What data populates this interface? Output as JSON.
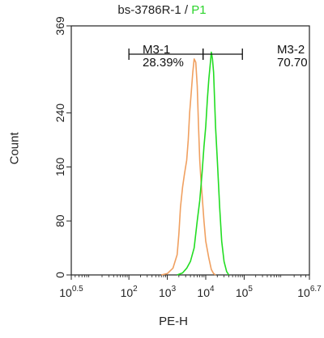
{
  "chart_data": {
    "type": "histogram",
    "title_main": "bs-3786R-1 / ",
    "title_accent": "P1",
    "xlabel": "PE-H",
    "ylabel": "Count",
    "x_scale": "log",
    "xlim": [
      3.1623,
      5000000
    ],
    "ylim": [
      0,
      369
    ],
    "x_ticks": [
      {
        "value": 3.1623,
        "base": "10",
        "exp": "0.5"
      },
      {
        "value": 100,
        "base": "10",
        "exp": "2"
      },
      {
        "value": 1000,
        "base": "10",
        "exp": "3"
      },
      {
        "value": 10000,
        "base": "10",
        "exp": "4"
      },
      {
        "value": 100000,
        "base": "10",
        "exp": "5"
      },
      {
        "value": 5000000,
        "base": "10",
        "exp": "6.7"
      }
    ],
    "y_ticks": [
      0,
      80,
      160,
      240,
      369
    ],
    "series": [
      {
        "color": "#f0a060",
        "points": [
          [
            700,
            0
          ],
          [
            1000,
            2
          ],
          [
            1400,
            10
          ],
          [
            1800,
            30
          ],
          [
            2000,
            60
          ],
          [
            2200,
            100
          ],
          [
            2500,
            130
          ],
          [
            2800,
            150
          ],
          [
            3200,
            170
          ],
          [
            3500,
            200
          ],
          [
            3800,
            240
          ],
          [
            4200,
            270
          ],
          [
            4600,
            300
          ],
          [
            5000,
            320
          ],
          [
            5500,
            315
          ],
          [
            6000,
            280
          ],
          [
            6500,
            220
          ],
          [
            7000,
            170
          ],
          [
            7500,
            140
          ],
          [
            8000,
            120
          ],
          [
            9000,
            80
          ],
          [
            10000,
            50
          ],
          [
            12000,
            25
          ],
          [
            14000,
            8
          ],
          [
            16000,
            2
          ],
          [
            18000,
            0
          ]
        ]
      },
      {
        "color": "#22dd22",
        "points": [
          [
            1800,
            0
          ],
          [
            2500,
            3
          ],
          [
            3200,
            10
          ],
          [
            4000,
            20
          ],
          [
            5000,
            40
          ],
          [
            6000,
            80
          ],
          [
            7000,
            110
          ],
          [
            8000,
            150
          ],
          [
            9000,
            190
          ],
          [
            10000,
            220
          ],
          [
            11000,
            260
          ],
          [
            12000,
            290
          ],
          [
            13000,
            310
          ],
          [
            14000,
            330
          ],
          [
            15000,
            320
          ],
          [
            16000,
            300
          ],
          [
            17000,
            260
          ],
          [
            18000,
            220
          ],
          [
            20000,
            170
          ],
          [
            23000,
            100
          ],
          [
            26000,
            50
          ],
          [
            30000,
            20
          ],
          [
            35000,
            5
          ],
          [
            40000,
            0
          ]
        ]
      }
    ],
    "gates": [
      {
        "name": "M3-1",
        "percent": "28.39%",
        "x_min": 100,
        "x_max": 8500
      },
      {
        "name": "M3-2",
        "percent": "70.70",
        "x_min": 8500,
        "x_max": 90000
      }
    ]
  }
}
